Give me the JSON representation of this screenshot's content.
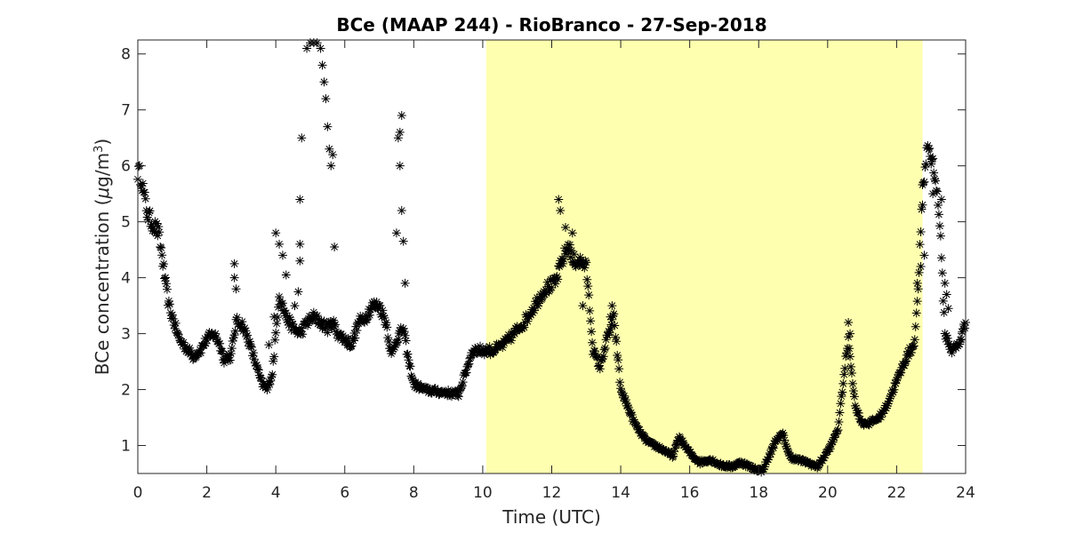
{
  "chart_data": {
    "type": "scatter",
    "title": "BCe (MAAP 244) - RioBranco - 27-Sep-2018",
    "xlabel": "Time (UTC)",
    "ylabel_prefix": "BCe concentration (",
    "ylabel_mu": "μ",
    "ylabel_unit": "g/m",
    "ylabel_sup": "3",
    "ylabel_suffix": ")",
    "xlim": [
      0,
      24
    ],
    "ylim": [
      0.5,
      8.25
    ],
    "xticks": [
      0,
      2,
      4,
      6,
      8,
      10,
      12,
      14,
      16,
      18,
      20,
      22,
      24
    ],
    "yticks": [
      1,
      2,
      3,
      4,
      5,
      6,
      7,
      8
    ],
    "grid": false,
    "marker": "asterisk",
    "marker_color": "#000000",
    "highlight": {
      "x_start": 10.1,
      "x_end": 22.75,
      "color": "#ffffb0"
    },
    "anchors": [
      [
        0.0,
        5.9
      ],
      [
        0.1,
        5.8
      ],
      [
        0.2,
        5.4
      ],
      [
        0.3,
        5.1
      ],
      [
        0.4,
        5.0
      ],
      [
        0.5,
        4.9
      ],
      [
        0.6,
        4.8
      ],
      [
        0.7,
        4.4
      ],
      [
        0.8,
        3.9
      ],
      [
        0.9,
        3.5
      ],
      [
        1.0,
        3.3
      ],
      [
        1.1,
        3.1
      ],
      [
        1.2,
        2.9
      ],
      [
        1.4,
        2.75
      ],
      [
        1.6,
        2.6
      ],
      [
        1.8,
        2.7
      ],
      [
        2.0,
        2.9
      ],
      [
        2.2,
        3.0
      ],
      [
        2.35,
        2.85
      ],
      [
        2.5,
        2.55
      ],
      [
        2.7,
        2.6
      ],
      [
        2.85,
        3.2
      ],
      [
        3.0,
        3.2
      ],
      [
        3.2,
        2.9
      ],
      [
        3.4,
        2.5
      ],
      [
        3.6,
        2.1
      ],
      [
        3.75,
        2.0
      ],
      [
        3.9,
        2.3
      ],
      [
        4.1,
        3.7
      ],
      [
        4.3,
        3.3
      ],
      [
        4.5,
        3.1
      ],
      [
        4.7,
        3.0
      ],
      [
        4.9,
        3.2
      ],
      [
        5.1,
        3.3
      ],
      [
        5.3,
        3.2
      ],
      [
        5.5,
        3.1
      ],
      [
        5.65,
        3.2
      ],
      [
        5.8,
        3.0
      ],
      [
        6.0,
        2.9
      ],
      [
        6.2,
        2.8
      ],
      [
        6.4,
        3.2
      ],
      [
        6.6,
        3.3
      ],
      [
        6.8,
        3.5
      ],
      [
        7.0,
        3.5
      ],
      [
        7.2,
        3.2
      ],
      [
        7.35,
        2.6
      ],
      [
        7.5,
        2.9
      ],
      [
        7.7,
        3.1
      ],
      [
        7.85,
        2.5
      ],
      [
        8.0,
        2.1
      ],
      [
        8.3,
        2.0
      ],
      [
        8.6,
        1.97
      ],
      [
        9.0,
        1.94
      ],
      [
        9.3,
        1.92
      ],
      [
        9.5,
        2.3
      ],
      [
        9.7,
        2.7
      ],
      [
        10.0,
        2.7
      ],
      [
        10.3,
        2.7
      ],
      [
        10.6,
        2.8
      ],
      [
        10.9,
        3.0
      ],
      [
        11.2,
        3.2
      ],
      [
        11.5,
        3.5
      ],
      [
        11.8,
        3.8
      ],
      [
        12.1,
        3.9
      ],
      [
        12.3,
        4.3
      ],
      [
        12.5,
        4.6
      ],
      [
        12.6,
        4.3
      ],
      [
        12.8,
        4.3
      ],
      [
        13.0,
        4.2
      ],
      [
        13.2,
        2.7
      ],
      [
        13.4,
        2.4
      ],
      [
        13.6,
        2.9
      ],
      [
        13.8,
        3.3
      ],
      [
        14.0,
        2.0
      ],
      [
        14.2,
        1.7
      ],
      [
        14.4,
        1.4
      ],
      [
        14.6,
        1.2
      ],
      [
        14.8,
        1.05
      ],
      [
        15.0,
        1.0
      ],
      [
        15.3,
        0.9
      ],
      [
        15.5,
        0.8
      ],
      [
        15.7,
        1.15
      ],
      [
        15.9,
        0.95
      ],
      [
        16.1,
        0.8
      ],
      [
        16.3,
        0.7
      ],
      [
        16.6,
        0.75
      ],
      [
        16.9,
        0.65
      ],
      [
        17.2,
        0.62
      ],
      [
        17.5,
        0.7
      ],
      [
        17.8,
        0.6
      ],
      [
        18.1,
        0.55
      ],
      [
        18.3,
        0.8
      ],
      [
        18.5,
        1.1
      ],
      [
        18.7,
        1.2
      ],
      [
        18.9,
        0.8
      ],
      [
        19.1,
        0.75
      ],
      [
        19.4,
        0.7
      ],
      [
        19.7,
        0.62
      ],
      [
        19.9,
        0.8
      ],
      [
        20.1,
        1.0
      ],
      [
        20.3,
        1.3
      ],
      [
        20.5,
        2.4
      ],
      [
        20.6,
        2.9
      ],
      [
        20.8,
        1.7
      ],
      [
        21.0,
        1.4
      ],
      [
        21.2,
        1.4
      ],
      [
        21.5,
        1.5
      ],
      [
        21.7,
        1.7
      ],
      [
        21.9,
        2.0
      ],
      [
        22.1,
        2.3
      ],
      [
        22.3,
        2.6
      ],
      [
        22.5,
        2.8
      ],
      [
        22.6,
        3.5
      ],
      [
        22.75,
        5.5
      ],
      [
        22.9,
        6.4
      ],
      [
        23.1,
        5.9
      ],
      [
        23.25,
        5.0
      ],
      [
        23.4,
        3.0
      ],
      [
        23.6,
        2.7
      ],
      [
        23.8,
        2.8
      ],
      [
        24.0,
        3.2
      ]
    ],
    "outliers": [
      [
        2.8,
        4.25
      ],
      [
        2.8,
        4.0
      ],
      [
        2.85,
        3.8
      ],
      [
        3.8,
        2.8
      ],
      [
        4.0,
        4.8
      ],
      [
        4.1,
        4.6
      ],
      [
        4.2,
        4.4
      ],
      [
        4.3,
        4.05
      ],
      [
        3.95,
        3.3
      ],
      [
        4.65,
        3.75
      ],
      [
        4.55,
        3.5
      ],
      [
        4.7,
        4.6
      ],
      [
        4.7,
        4.3
      ],
      [
        4.7,
        5.4
      ],
      [
        4.75,
        6.5
      ],
      [
        4.9,
        8.1
      ],
      [
        5.0,
        8.2
      ],
      [
        5.1,
        8.2
      ],
      [
        5.2,
        8.2
      ],
      [
        5.3,
        8.1
      ],
      [
        5.35,
        7.8
      ],
      [
        5.4,
        7.5
      ],
      [
        5.45,
        7.2
      ],
      [
        5.5,
        6.7
      ],
      [
        5.55,
        6.3
      ],
      [
        5.6,
        6.0
      ],
      [
        5.65,
        6.2
      ],
      [
        5.7,
        4.55
      ],
      [
        7.65,
        6.9
      ],
      [
        7.6,
        6.6
      ],
      [
        7.55,
        6.5
      ],
      [
        7.6,
        6.0
      ],
      [
        7.65,
        5.2
      ],
      [
        7.7,
        4.65
      ],
      [
        7.5,
        4.8
      ],
      [
        7.75,
        3.9
      ],
      [
        12.2,
        5.4
      ],
      [
        12.25,
        5.2
      ],
      [
        12.4,
        4.9
      ],
      [
        12.6,
        4.8
      ],
      [
        12.9,
        3.5
      ],
      [
        22.6,
        3.9
      ],
      [
        22.7,
        4.2
      ],
      [
        22.8,
        4.4
      ],
      [
        22.75,
        5.3
      ],
      [
        23.05,
        5.5
      ],
      [
        23.3,
        5.4
      ],
      [
        23.4,
        3.9
      ],
      [
        23.45,
        3.7
      ],
      [
        23.5,
        3.45
      ],
      [
        13.75,
        3.5
      ],
      [
        13.7,
        3.3
      ],
      [
        20.6,
        3.2
      ],
      [
        20.65,
        3.0
      ]
    ]
  }
}
